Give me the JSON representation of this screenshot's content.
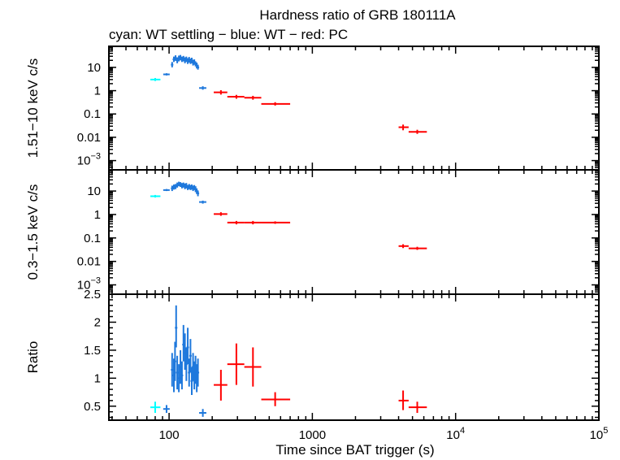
{
  "chart_data": {
    "type": "scatter",
    "title": "Hardness ratio of GRB 180111A",
    "subtitle": "cyan: WT settling − blue: WT − red: PC",
    "xlabel": "Time since BAT trigger (s)",
    "xscale": "log",
    "xlim": [
      38,
      100000
    ],
    "x_tick_labels": [
      {
        "value": 100,
        "base": "100",
        "exp": ""
      },
      {
        "value": 1000,
        "base": "1000",
        "exp": ""
      },
      {
        "value": 10000,
        "base": "10",
        "exp": "4"
      },
      {
        "value": 100000,
        "base": "10",
        "exp": "5"
      }
    ],
    "colors": {
      "wt_settling": "#00ffff",
      "wt": "#1e78dc",
      "pc": "#ff0000"
    },
    "panels": [
      {
        "id": "hard",
        "ylabel": "1.51−10 keV c/s",
        "yscale": "log",
        "ylim": [
          0.0004,
          80
        ],
        "y_tick_labels": [
          {
            "value": 10,
            "base": "10",
            "exp": ""
          },
          {
            "value": 1,
            "base": "1",
            "exp": ""
          },
          {
            "value": 0.1,
            "base": "0.1",
            "exp": ""
          },
          {
            "value": 0.01,
            "base": "0.01",
            "exp": ""
          },
          {
            "value": 0.001,
            "base": "10",
            "exp": "−3"
          }
        ],
        "series": [
          {
            "color": "wt_settling",
            "points": [
              {
                "x": 80,
                "xlo": 74,
                "xhi": 87,
                "y": 3.0,
                "ylo": 2.6,
                "yhi": 3.5
              }
            ]
          },
          {
            "color": "wt",
            "points": [
              {
                "x": 96,
                "xlo": 91,
                "xhi": 101,
                "y": 5.0,
                "ylo": 4.5,
                "yhi": 5.6
              },
              {
                "x": 105,
                "y": 13,
                "ylo": 10,
                "yhi": 17
              },
              {
                "x": 108,
                "y": 22,
                "ylo": 17,
                "yhi": 29
              },
              {
                "x": 111,
                "y": 25,
                "ylo": 19,
                "yhi": 33
              },
              {
                "x": 114,
                "y": 20,
                "ylo": 15,
                "yhi": 27
              },
              {
                "x": 117,
                "y": 24,
                "ylo": 18,
                "yhi": 32
              },
              {
                "x": 120,
                "y": 26,
                "ylo": 20,
                "yhi": 34
              },
              {
                "x": 123,
                "y": 22,
                "ylo": 17,
                "yhi": 29
              },
              {
                "x": 126,
                "y": 24,
                "ylo": 18,
                "yhi": 31
              },
              {
                "x": 129,
                "y": 20,
                "ylo": 15,
                "yhi": 27
              },
              {
                "x": 132,
                "y": 22,
                "ylo": 17,
                "yhi": 29
              },
              {
                "x": 135,
                "y": 19,
                "ylo": 14,
                "yhi": 25
              },
              {
                "x": 138,
                "y": 21,
                "ylo": 16,
                "yhi": 28
              },
              {
                "x": 141,
                "y": 18,
                "ylo": 14,
                "yhi": 24
              },
              {
                "x": 144,
                "y": 20,
                "ylo": 15,
                "yhi": 26
              },
              {
                "x": 147,
                "y": 16,
                "ylo": 12,
                "yhi": 21
              },
              {
                "x": 150,
                "y": 17,
                "ylo": 13,
                "yhi": 22
              },
              {
                "x": 153,
                "y": 14,
                "ylo": 11,
                "yhi": 18
              },
              {
                "x": 156,
                "y": 12,
                "ylo": 9,
                "yhi": 16
              },
              {
                "x": 159,
                "y": 10,
                "ylo": 8,
                "yhi": 13
              },
              {
                "x": 172,
                "xlo": 162,
                "xhi": 182,
                "y": 1.3,
                "ylo": 1.1,
                "yhi": 1.55
              }
            ]
          },
          {
            "color": "pc",
            "points": [
              {
                "x": 230,
                "xlo": 205,
                "xhi": 255,
                "y": 0.85,
                "ylo": 0.68,
                "yhi": 1.05
              },
              {
                "x": 295,
                "xlo": 255,
                "xhi": 335,
                "y": 0.55,
                "ylo": 0.45,
                "yhi": 0.66
              },
              {
                "x": 385,
                "xlo": 335,
                "xhi": 440,
                "y": 0.5,
                "ylo": 0.41,
                "yhi": 0.6
              },
              {
                "x": 550,
                "xlo": 440,
                "xhi": 700,
                "y": 0.27,
                "ylo": 0.23,
                "yhi": 0.32
              },
              {
                "x": 4300,
                "xlo": 4000,
                "xhi": 4700,
                "y": 0.027,
                "ylo": 0.02,
                "yhi": 0.035
              },
              {
                "x": 5400,
                "xlo": 4700,
                "xhi": 6300,
                "y": 0.017,
                "ylo": 0.014,
                "yhi": 0.021
              }
            ]
          }
        ]
      },
      {
        "id": "soft",
        "ylabel": "0.3−1.5 keV c/s",
        "yscale": "log",
        "ylim": [
          0.0004,
          80
        ],
        "y_tick_labels": [
          {
            "value": 10,
            "base": "10",
            "exp": ""
          },
          {
            "value": 1,
            "base": "1",
            "exp": ""
          },
          {
            "value": 0.1,
            "base": "0.1",
            "exp": ""
          },
          {
            "value": 0.01,
            "base": "0.01",
            "exp": ""
          },
          {
            "value": 0.001,
            "base": "10",
            "exp": "−3"
          }
        ],
        "series": [
          {
            "color": "wt_settling",
            "points": [
              {
                "x": 80,
                "xlo": 74,
                "xhi": 87,
                "y": 6.0,
                "ylo": 5.3,
                "yhi": 6.8
              }
            ]
          },
          {
            "color": "wt",
            "points": [
              {
                "x": 96,
                "xlo": 91,
                "xhi": 101,
                "y": 11,
                "ylo": 10,
                "yhi": 12.2
              },
              {
                "x": 105,
                "y": 13,
                "ylo": 10,
                "yhi": 17
              },
              {
                "x": 108,
                "y": 15,
                "ylo": 11.5,
                "yhi": 19
              },
              {
                "x": 111,
                "y": 16,
                "ylo": 12,
                "yhi": 20
              },
              {
                "x": 114,
                "y": 18,
                "ylo": 14,
                "yhi": 23
              },
              {
                "x": 117,
                "y": 20,
                "ylo": 16,
                "yhi": 25
              },
              {
                "x": 120,
                "y": 19,
                "ylo": 15,
                "yhi": 24
              },
              {
                "x": 123,
                "y": 17,
                "ylo": 13,
                "yhi": 22
              },
              {
                "x": 126,
                "y": 18,
                "ylo": 14,
                "yhi": 23
              },
              {
                "x": 129,
                "y": 16,
                "ylo": 12,
                "yhi": 21
              },
              {
                "x": 132,
                "y": 17,
                "ylo": 13,
                "yhi": 22
              },
              {
                "x": 135,
                "y": 14,
                "ylo": 11,
                "yhi": 18
              },
              {
                "x": 138,
                "y": 16,
                "ylo": 12,
                "yhi": 20
              },
              {
                "x": 141,
                "y": 14,
                "ylo": 11,
                "yhi": 18
              },
              {
                "x": 144,
                "y": 15,
                "ylo": 11.5,
                "yhi": 19
              },
              {
                "x": 147,
                "y": 13,
                "ylo": 10,
                "yhi": 17
              },
              {
                "x": 150,
                "y": 14,
                "ylo": 11,
                "yhi": 18
              },
              {
                "x": 153,
                "y": 12,
                "ylo": 9,
                "yhi": 16
              },
              {
                "x": 156,
                "y": 10,
                "ylo": 7.5,
                "yhi": 13
              },
              {
                "x": 159,
                "y": 8,
                "ylo": 6,
                "yhi": 10.5
              },
              {
                "x": 172,
                "xlo": 162,
                "xhi": 182,
                "y": 3.4,
                "ylo": 2.9,
                "yhi": 3.9
              }
            ]
          },
          {
            "color": "pc",
            "points": [
              {
                "x": 230,
                "xlo": 205,
                "xhi": 255,
                "y": 1.05,
                "ylo": 0.88,
                "yhi": 1.25
              },
              {
                "x": 295,
                "xlo": 255,
                "xhi": 335,
                "y": 0.45,
                "ylo": 0.38,
                "yhi": 0.53
              },
              {
                "x": 385,
                "xlo": 335,
                "xhi": 440,
                "y": 0.45,
                "ylo": 0.38,
                "yhi": 0.53
              },
              {
                "x": 550,
                "xlo": 440,
                "xhi": 700,
                "y": 0.45,
                "ylo": 0.4,
                "yhi": 0.51
              },
              {
                "x": 4300,
                "xlo": 4000,
                "xhi": 4700,
                "y": 0.045,
                "ylo": 0.037,
                "yhi": 0.054
              },
              {
                "x": 5400,
                "xlo": 4700,
                "xhi": 6300,
                "y": 0.036,
                "ylo": 0.031,
                "yhi": 0.042
              }
            ]
          }
        ]
      },
      {
        "id": "ratio",
        "ylabel": "Ratio",
        "yscale": "linear",
        "ylim": [
          0.25,
          2.5
        ],
        "y_tick_labels": [
          {
            "value": 2.5,
            "base": "2.5",
            "exp": ""
          },
          {
            "value": 2,
            "base": "2",
            "exp": ""
          },
          {
            "value": 1.5,
            "base": "1.5",
            "exp": ""
          },
          {
            "value": 1,
            "base": "1",
            "exp": ""
          },
          {
            "value": 0.5,
            "base": "0.5",
            "exp": ""
          }
        ],
        "series": [
          {
            "color": "wt_settling",
            "points": [
              {
                "x": 80,
                "xlo": 74,
                "xhi": 87,
                "y": 0.48,
                "ylo": 0.38,
                "yhi": 0.58
              }
            ]
          },
          {
            "color": "wt",
            "points": [
              {
                "x": 96,
                "xlo": 91,
                "xhi": 101,
                "y": 0.45,
                "ylo": 0.38,
                "yhi": 0.52
              },
              {
                "x": 105,
                "y": 1.15,
                "ylo": 0.85,
                "yhi": 1.45
              },
              {
                "x": 108,
                "y": 1.05,
                "ylo": 0.75,
                "yhi": 1.35
              },
              {
                "x": 110,
                "y": 1.3,
                "ylo": 0.95,
                "yhi": 1.65
              },
              {
                "x": 112,
                "y": 1.9,
                "ylo": 1.55,
                "yhi": 2.3
              },
              {
                "x": 114,
                "y": 1.1,
                "ylo": 0.8,
                "yhi": 1.4
              },
              {
                "x": 117,
                "y": 1.0,
                "ylo": 0.75,
                "yhi": 1.25
              },
              {
                "x": 120,
                "y": 1.2,
                "ylo": 0.9,
                "yhi": 1.5
              },
              {
                "x": 123,
                "y": 1.05,
                "ylo": 0.8,
                "yhi": 1.3
              },
              {
                "x": 126,
                "y": 1.6,
                "ylo": 1.3,
                "yhi": 1.95
              },
              {
                "x": 129,
                "y": 1.45,
                "ylo": 1.15,
                "yhi": 1.8
              },
              {
                "x": 132,
                "y": 1.25,
                "ylo": 0.95,
                "yhi": 1.55
              },
              {
                "x": 135,
                "y": 1.55,
                "ylo": 1.25,
                "yhi": 1.9
              },
              {
                "x": 138,
                "y": 1.1,
                "ylo": 0.85,
                "yhi": 1.35
              },
              {
                "x": 141,
                "y": 1.4,
                "ylo": 1.1,
                "yhi": 1.7
              },
              {
                "x": 144,
                "y": 0.95,
                "ylo": 0.7,
                "yhi": 1.2
              },
              {
                "x": 147,
                "y": 1.2,
                "ylo": 0.95,
                "yhi": 1.45
              },
              {
                "x": 150,
                "y": 1.05,
                "ylo": 0.8,
                "yhi": 1.3
              },
              {
                "x": 153,
                "y": 1.15,
                "ylo": 0.9,
                "yhi": 1.4
              },
              {
                "x": 156,
                "y": 1.0,
                "ylo": 0.75,
                "yhi": 1.25
              },
              {
                "x": 159,
                "y": 1.1,
                "ylo": 0.85,
                "yhi": 1.35
              },
              {
                "x": 172,
                "xlo": 162,
                "xhi": 182,
                "y": 0.38,
                "ylo": 0.31,
                "yhi": 0.45
              }
            ]
          },
          {
            "color": "pc",
            "points": [
              {
                "x": 230,
                "xlo": 205,
                "xhi": 255,
                "y": 0.88,
                "ylo": 0.6,
                "yhi": 1.15
              },
              {
                "x": 295,
                "xlo": 255,
                "xhi": 335,
                "y": 1.25,
                "ylo": 0.88,
                "yhi": 1.62
              },
              {
                "x": 385,
                "xlo": 335,
                "xhi": 440,
                "y": 1.2,
                "ylo": 0.85,
                "yhi": 1.55
              },
              {
                "x": 550,
                "xlo": 440,
                "xhi": 700,
                "y": 0.62,
                "ylo": 0.5,
                "yhi": 0.75
              },
              {
                "x": 4300,
                "xlo": 4000,
                "xhi": 4700,
                "y": 0.6,
                "ylo": 0.43,
                "yhi": 0.78
              },
              {
                "x": 5400,
                "xlo": 4700,
                "xhi": 6300,
                "y": 0.48,
                "ylo": 0.38,
                "yhi": 0.58
              }
            ]
          }
        ]
      }
    ]
  }
}
